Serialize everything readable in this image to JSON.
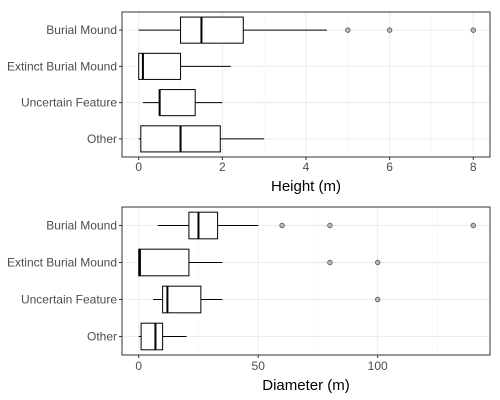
{
  "chart_data": [
    {
      "type": "boxplot",
      "orientation": "horizontal",
      "xlabel": "Height (m)",
      "xlim": [
        -0.4,
        8.4
      ],
      "xticks": [
        0,
        2,
        4,
        6,
        8
      ],
      "grid": true,
      "categories": [
        "Burial Mound",
        "Extinct Burial Mound",
        "Uncertain Feature",
        "Other"
      ],
      "boxes": [
        {
          "category": "Burial Mound",
          "whisker_low": 0.0,
          "q1": 1.0,
          "median": 1.5,
          "q3": 2.5,
          "whisker_high": 4.5,
          "outliers": [
            5.0,
            6.0,
            8.0
          ]
        },
        {
          "category": "Extinct Burial Mound",
          "whisker_low": 0.0,
          "q1": 0.0,
          "median": 0.1,
          "q3": 1.0,
          "whisker_high": 2.2,
          "outliers": []
        },
        {
          "category": "Uncertain Feature",
          "whisker_low": 0.1,
          "q1": 0.5,
          "median": 0.5,
          "q3": 1.35,
          "whisker_high": 2.0,
          "outliers": []
        },
        {
          "category": "Other",
          "whisker_low": 0.0,
          "q1": 0.05,
          "median": 1.0,
          "q3": 1.95,
          "whisker_high": 3.0,
          "outliers": []
        }
      ]
    },
    {
      "type": "boxplot",
      "orientation": "horizontal",
      "xlabel": "Diameter (m)",
      "xlim": [
        -7,
        147
      ],
      "xticks": [
        0,
        50,
        100
      ],
      "grid": true,
      "categories": [
        "Burial Mound",
        "Extinct Burial Mound",
        "Uncertain Feature",
        "Other"
      ],
      "boxes": [
        {
          "category": "Burial Mound",
          "whisker_low": 8,
          "q1": 21,
          "median": 25,
          "q3": 33,
          "whisker_high": 50,
          "outliers": [
            60,
            80,
            140
          ]
        },
        {
          "category": "Extinct Burial Mound",
          "whisker_low": 0,
          "q1": 0,
          "median": 0.5,
          "q3": 21,
          "whisker_high": 35,
          "outliers": [
            80,
            100
          ]
        },
        {
          "category": "Uncertain Feature",
          "whisker_low": 6,
          "q1": 10,
          "median": 12,
          "q3": 26,
          "whisker_high": 35,
          "outliers": [
            100
          ]
        },
        {
          "category": "Other",
          "whisker_low": 0,
          "q1": 1,
          "median": 7,
          "q3": 10,
          "whisker_high": 20,
          "outliers": []
        }
      ]
    }
  ]
}
